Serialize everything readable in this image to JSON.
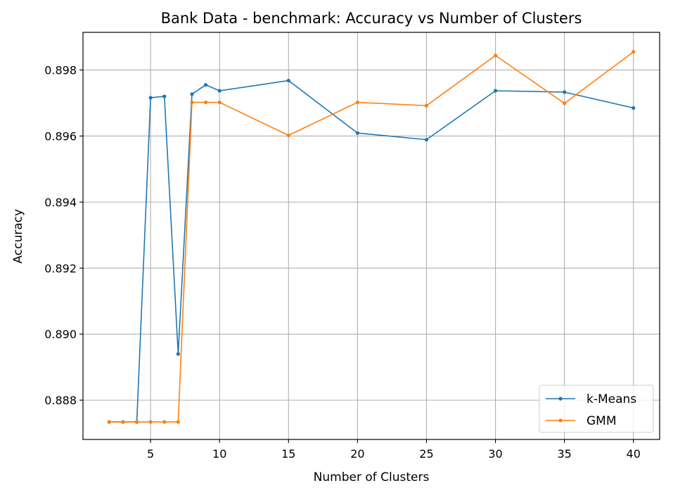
{
  "chart_data": {
    "type": "line",
    "title": "Bank Data - benchmark: Accuracy vs Number of Clusters",
    "xlabel": "Number of Clusters",
    "ylabel": "Accuracy",
    "xlim": [
      0.1,
      41.9
    ],
    "ylim": [
      0.88681,
      0.89914
    ],
    "xticks": [
      5,
      10,
      15,
      20,
      25,
      30,
      35,
      40
    ],
    "yticks": [
      0.888,
      0.89,
      0.892,
      0.894,
      0.896,
      0.898
    ],
    "ytick_labels": [
      "0.888",
      "0.890",
      "0.892",
      "0.894",
      "0.896",
      "0.898"
    ],
    "grid": true,
    "legend_position": "lower-right",
    "x": [
      2,
      3,
      4,
      5,
      6,
      7,
      8,
      9,
      10,
      15,
      20,
      25,
      30,
      35,
      40
    ],
    "series": [
      {
        "name": "k-Means",
        "color": "#1f77b4",
        "values": [
          0.88734,
          0.88734,
          0.88734,
          0.89716,
          0.8972,
          0.8894,
          0.89727,
          0.89755,
          0.89737,
          0.89768,
          0.89609,
          0.89589,
          0.89737,
          0.89733,
          0.89685
        ]
      },
      {
        "name": "GMM",
        "color": "#ff7f0e",
        "values": [
          0.88734,
          0.88734,
          0.88734,
          0.88734,
          0.88734,
          0.88734,
          0.89702,
          0.89702,
          0.89702,
          0.89602,
          0.89702,
          0.89692,
          0.89844,
          0.89699,
          0.89855
        ]
      }
    ]
  }
}
